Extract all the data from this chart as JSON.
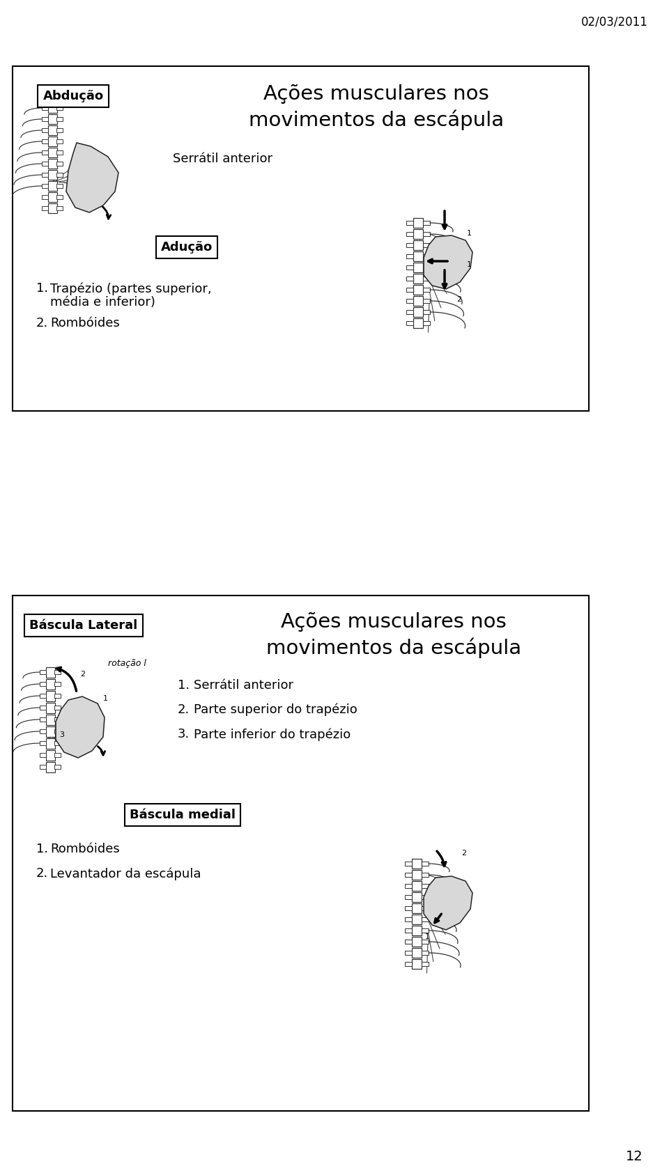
{
  "bg_color": "#ffffff",
  "date_text": "02/03/2011",
  "page_number": "12",
  "box1": {
    "label": "Abdução",
    "title_line1": "Ações musculares nos",
    "title_line2": "movimentos da escápula",
    "subtitle": "Serrátil anterior",
    "label2": "Adução",
    "item1_line1": "Trapézio (partes superior,",
    "item1_line2": "média e inferior)",
    "item2": "Rombóides"
  },
  "box2": {
    "label": "Báscula Lateral",
    "title_line1": "Ações musculares nos",
    "title_line2": "movimentos da escápula",
    "rotation_label": "rotação l",
    "item1": "Serrátil anterior",
    "item2": "Parte superior do trapézio",
    "item3": "Parte inferior do trapézio",
    "label2": "Báscula medial",
    "item4": "Rombóides",
    "item5": "Levantador da escápula"
  },
  "box_border_color": "#000000",
  "text_color": "#000000",
  "title_fontsize": 21,
  "label_fontsize": 13,
  "subtitle_fontsize": 13,
  "item_fontsize": 13,
  "date_fontsize": 12,
  "page_fontsize": 14,
  "rotation_fontsize": 9
}
